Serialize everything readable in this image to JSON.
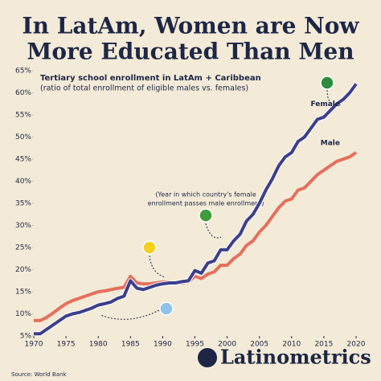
{
  "chart_data": {
    "type": "line",
    "title_lines": [
      "In LatAm, Women are Now",
      "More Educated Than Men"
    ],
    "subtitle": "Tertiary school enrollment in LatAm + Caribbean",
    "subtitle2": "(ratio of total enrollment of eligible males vs. females)",
    "annotation_lines": [
      "(Year in which country's female",
      "enrollment passes male enrollment)"
    ],
    "brand": "Latinometrics",
    "source": "Source: World Bank",
    "x": [
      1970,
      1971,
      1972,
      1973,
      1974,
      1975,
      1976,
      1977,
      1978,
      1979,
      1980,
      1981,
      1982,
      1983,
      1984,
      1985,
      1986,
      1987,
      1988,
      1989,
      1990,
      1991,
      1992,
      1993,
      1994,
      1995,
      1996,
      1997,
      1998,
      1999,
      2000,
      2001,
      2002,
      2003,
      2004,
      2005,
      2006,
      2007,
      2008,
      2009,
      2010,
      2011,
      2012,
      2013,
      2014,
      2015,
      2016,
      2017,
      2018,
      2019,
      2020
    ],
    "series": [
      {
        "name": "Female",
        "color": "#3b3f8c",
        "values": [
          5.5,
          5.5,
          6.5,
          7.5,
          8.5,
          9.5,
          10,
          10.3,
          10.8,
          11.3,
          12,
          12.3,
          12.7,
          13.5,
          14,
          17.5,
          15.8,
          15.5,
          16,
          16.5,
          16.8,
          17,
          17,
          17.3,
          17.5,
          19.8,
          19.2,
          21.5,
          22,
          24.5,
          24.5,
          26.5,
          28,
          31,
          32.5,
          35,
          38,
          40.5,
          43.5,
          45.5,
          46.5,
          49,
          50,
          52,
          54,
          54.5,
          56,
          57.5,
          58.5,
          60,
          62
        ]
      },
      {
        "name": "Male",
        "color": "#e4705c",
        "values": [
          8.5,
          8.5,
          9.2,
          10.2,
          11.3,
          12.3,
          13,
          13.5,
          14,
          14.5,
          15,
          15.2,
          15.5,
          15.8,
          16,
          18.5,
          17,
          16.8,
          16.8,
          17,
          17.2,
          17.2,
          17,
          17,
          17.3,
          18.5,
          18,
          19,
          19.5,
          21,
          21,
          22.5,
          23.5,
          25.5,
          26.5,
          28.5,
          30,
          32,
          34,
          35.5,
          36,
          38,
          38.5,
          40,
          41.5,
          42.5,
          43.5,
          44.5,
          45,
          45.5,
          46.5
        ]
      }
    ],
    "xlim": [
      1970,
      2020
    ],
    "xticks": [
      1970,
      1975,
      1980,
      1985,
      1990,
      1995,
      2000,
      2005,
      2010,
      2015,
      2020
    ],
    "ylim": [
      5,
      65
    ],
    "yticks": [
      {
        "value": 5,
        "label": "5%"
      },
      {
        "value": 10,
        "label": "10%"
      },
      {
        "value": 15,
        "label": "15%"
      },
      {
        "value": 20,
        "label": "20%"
      },
      {
        "value": 25,
        "label": "25%"
      },
      {
        "value": 30,
        "label": "30%"
      },
      {
        "value": 35,
        "label": "35%"
      },
      {
        "value": 40,
        "label": "40%"
      },
      {
        "value": 45,
        "label": "45%"
      },
      {
        "value": 50,
        "label": "50%"
      },
      {
        "value": 55,
        "label": "55%"
      },
      {
        "value": 60,
        "label": "60%"
      },
      {
        "value": 65,
        "label": "65%"
      }
    ],
    "grid": false
  }
}
